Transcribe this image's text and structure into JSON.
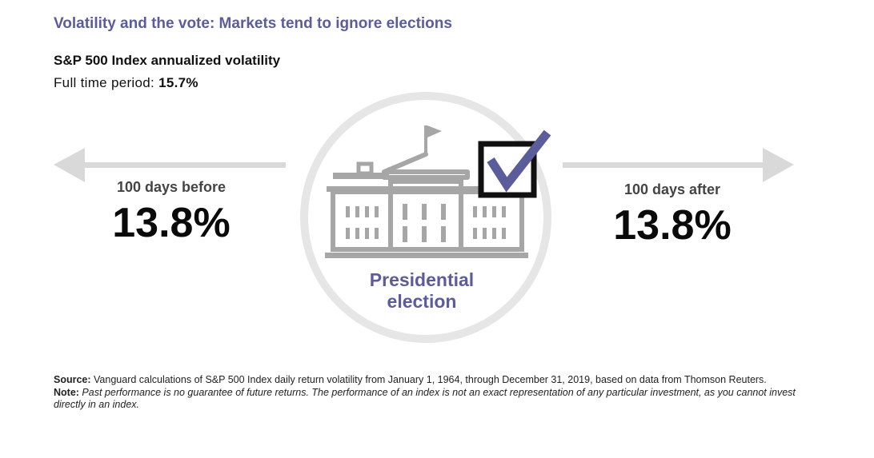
{
  "title": "Volatility and the vote: Markets tend to ignore elections",
  "subtitle": "S&P 500 Index annualized volatility",
  "full_period": {
    "label": "Full time period:",
    "value": "15.7%"
  },
  "before": {
    "label": "100 days before",
    "value": "13.8%"
  },
  "after": {
    "label": "100 days after",
    "value": "13.8%"
  },
  "center": {
    "line1": "Presidential",
    "line2": "election"
  },
  "icons": {
    "left_arrow": "arrow-left-icon",
    "right_arrow": "arrow-right-icon",
    "building": "capitol-building-icon",
    "checkbox": "checkbox-checked-icon"
  },
  "colors": {
    "accent": "#5b5c9a",
    "arrow": "#d9d9d9",
    "circle": "#e6e6e6",
    "building": "#a6a6a6"
  },
  "footer": {
    "source_label": "Source:",
    "source_text": " Vanguard calculations of S&P 500 Index daily return volatility from January 1, 1964, through December 31, 2019, based on data from Thomson Reuters.",
    "note_label": "Note:",
    "note_text": " Past performance is no guarantee of future returns. The performance of an index is not an exact representation of any particular investment, as you cannot invest directly in an index."
  }
}
